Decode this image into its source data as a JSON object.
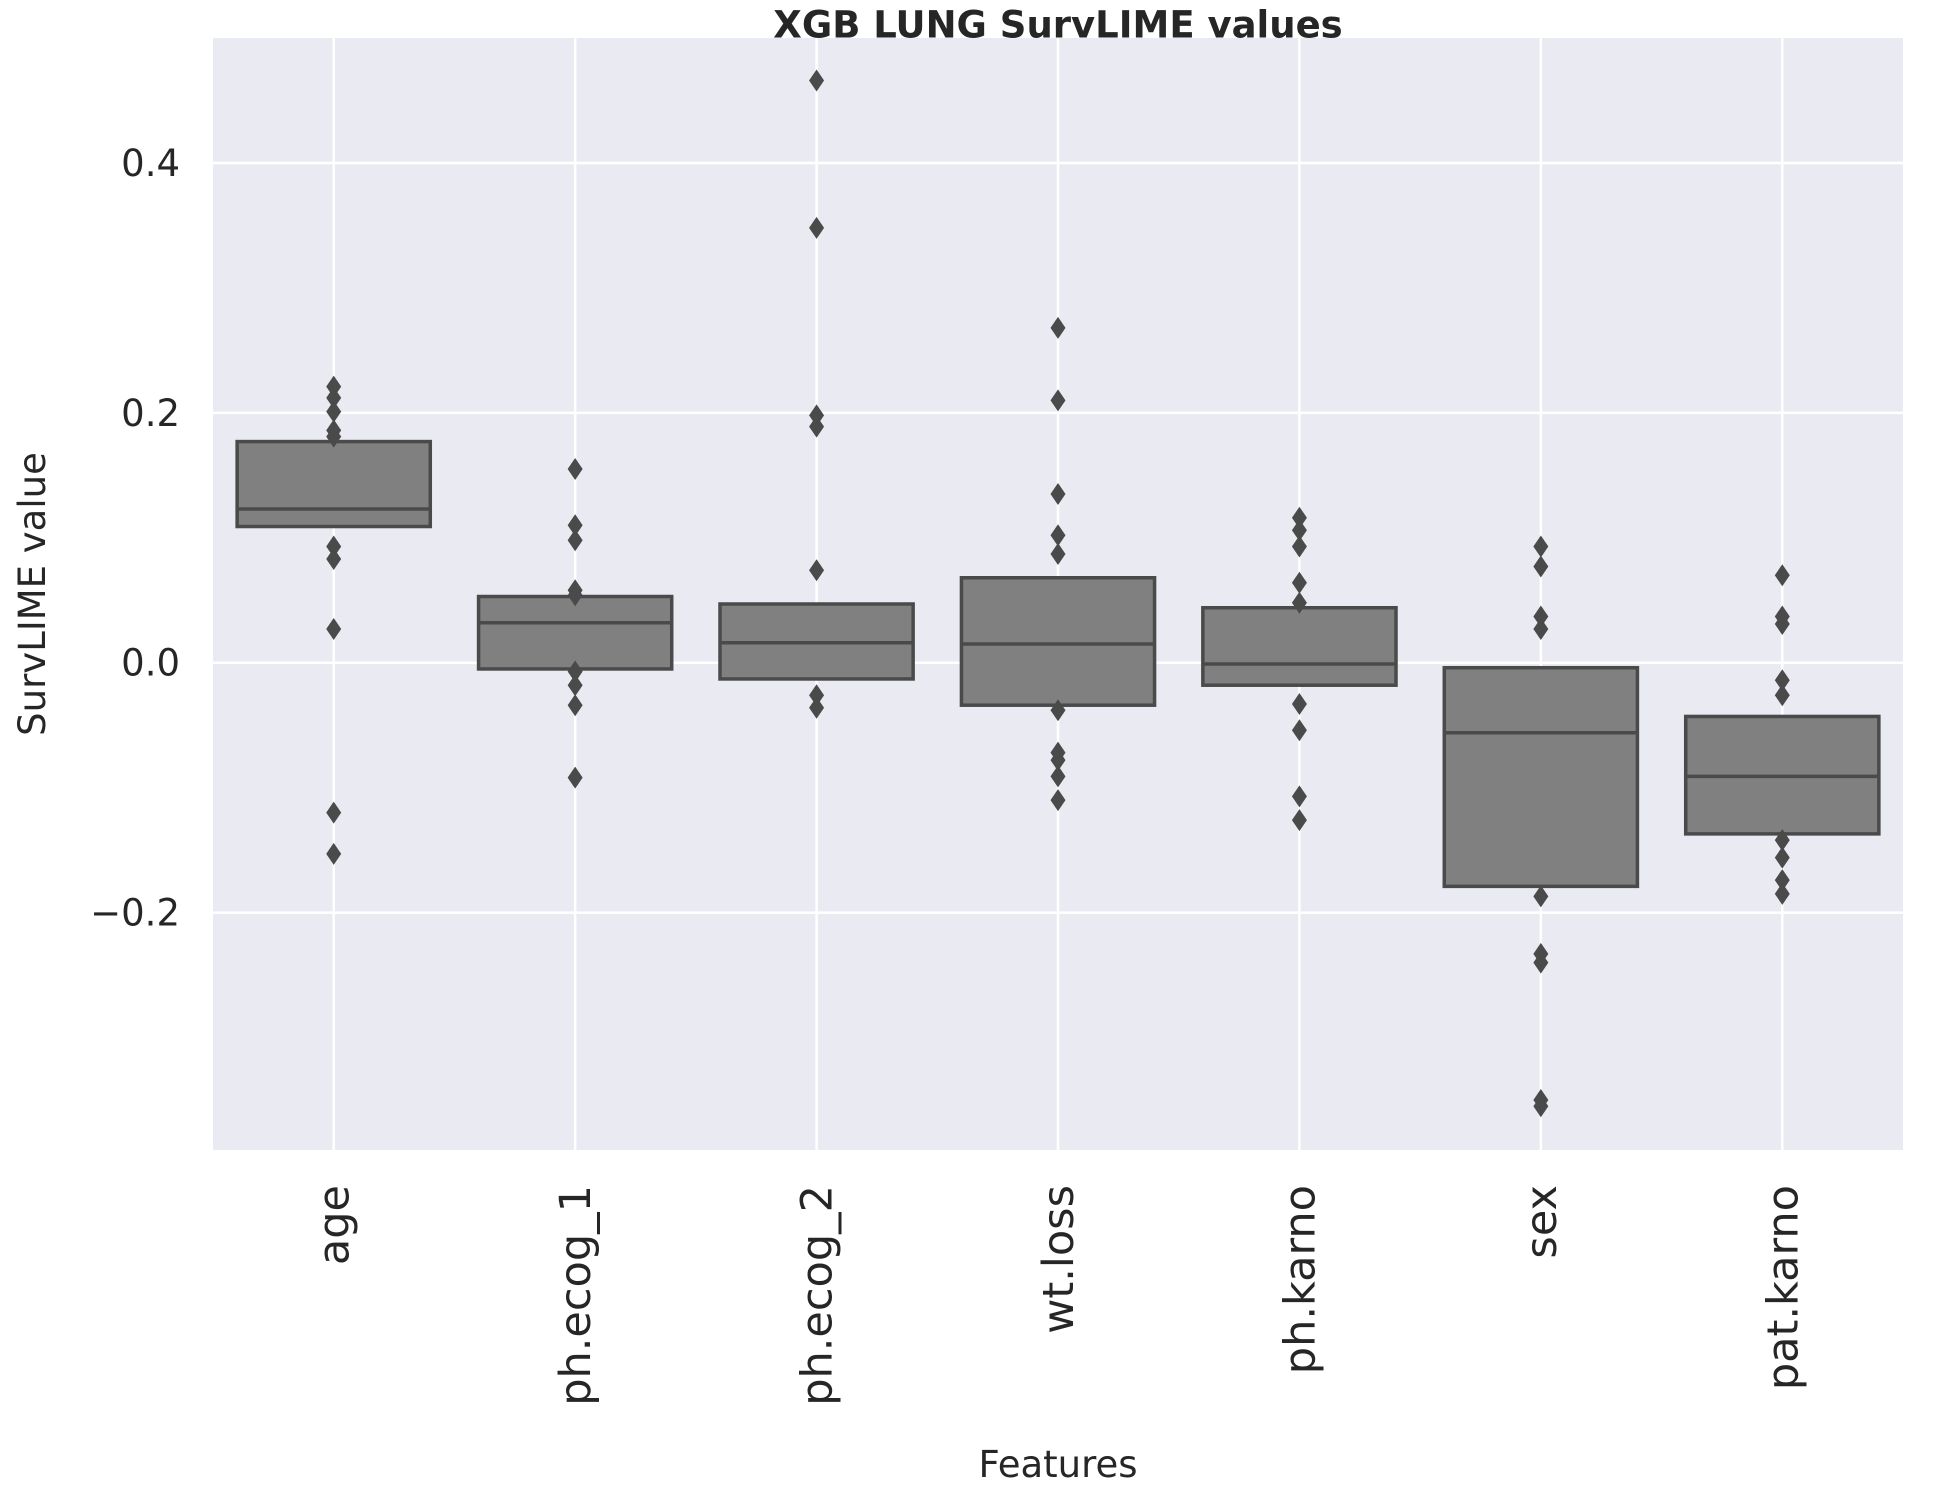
{
  "chart_data": {
    "type": "box",
    "title": "XGB LUNG SurvLIME values",
    "xlabel": "Features",
    "ylabel": "SurvLIME value",
    "ylim": [
      -0.39,
      0.5
    ],
    "yticks": [
      -0.2,
      0.0,
      0.2,
      0.4
    ],
    "ytick_labels": [
      "−0.2",
      "0.0",
      "0.2",
      "0.4"
    ],
    "grid": true,
    "colors": {
      "background": "#eaeaf2",
      "grid": "#ffffff",
      "box_fill": "#808080",
      "box_stroke": "#4a4a4a",
      "outlier": "#4a4a4a"
    },
    "categories": [
      "age",
      "ph.ecog_1",
      "ph.ecog_2",
      "wt.loss",
      "ph.karno",
      "sex",
      "pat.karno"
    ],
    "boxes": [
      {
        "category": "age",
        "q1": 0.109,
        "median": 0.123,
        "q3": 0.177,
        "outliers": [
          0.221,
          0.212,
          0.201,
          0.186,
          0.181,
          0.093,
          0.083,
          0.027,
          -0.12,
          -0.153
        ]
      },
      {
        "category": "ph.ecog_1",
        "q1": -0.005,
        "median": 0.032,
        "q3": 0.053,
        "outliers": [
          0.155,
          0.11,
          0.098,
          0.058,
          0.054,
          -0.007,
          -0.018,
          -0.034,
          -0.092
        ]
      },
      {
        "category": "ph.ecog_2",
        "q1": -0.013,
        "median": 0.016,
        "q3": 0.047,
        "outliers": [
          0.466,
          0.348,
          0.198,
          0.189,
          0.074,
          -0.026,
          -0.036
        ]
      },
      {
        "category": "wt.loss",
        "q1": -0.034,
        "median": 0.015,
        "q3": 0.068,
        "outliers": [
          0.268,
          0.21,
          0.135,
          0.102,
          0.087,
          -0.038,
          -0.072,
          -0.078,
          -0.091,
          -0.11
        ]
      },
      {
        "category": "ph.karno",
        "q1": -0.018,
        "median": -0.001,
        "q3": 0.044,
        "outliers": [
          0.116,
          0.106,
          0.093,
          0.064,
          0.048,
          -0.033,
          -0.054,
          -0.107,
          -0.126
        ]
      },
      {
        "category": "sex",
        "q1": -0.179,
        "median": -0.056,
        "q3": -0.004,
        "outliers": [
          0.093,
          0.077,
          0.037,
          0.027,
          -0.187,
          -0.233,
          -0.24,
          -0.35,
          -0.355
        ]
      },
      {
        "category": "pat.karno",
        "q1": -0.137,
        "median": -0.091,
        "q3": -0.043,
        "outliers": [
          0.07,
          0.037,
          0.031,
          -0.014,
          -0.026,
          -0.142,
          -0.156,
          -0.174,
          -0.185
        ]
      }
    ]
  }
}
